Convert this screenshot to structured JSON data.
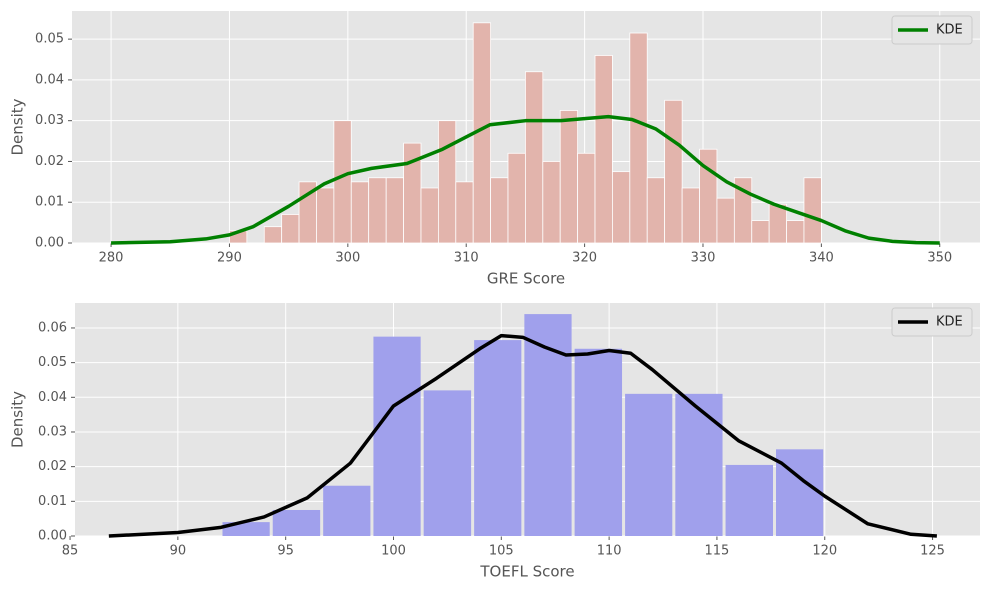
{
  "chart_data": [
    {
      "type": "histogram",
      "xlabel": "GRE Score",
      "ylabel": "Density",
      "color": "#e2b4ac",
      "bins": [
        290,
        291.47,
        292.94,
        294.41,
        295.88,
        297.35,
        298.82,
        300.29,
        301.76,
        303.24,
        304.71,
        306.18,
        307.65,
        309.12,
        310.59,
        312.06,
        313.53,
        315,
        316.47,
        317.94,
        319.41,
        320.88,
        322.35,
        323.82,
        325.29,
        326.76,
        328.24,
        329.71,
        331.18,
        332.65,
        334.12,
        335.59,
        337.06,
        338.53,
        340
      ],
      "counts": [
        0.003,
        0,
        0.004,
        0.007,
        0.015,
        0.0135,
        0.03,
        0.015,
        0.016,
        0.016,
        0.0245,
        0.0135,
        0.03,
        0.015,
        0.054,
        0.016,
        0.022,
        0.042,
        0.02,
        0.0325,
        0.022,
        0.046,
        0.0175,
        0.0515,
        0.016,
        0.035,
        0.0135,
        0.023,
        0.011,
        0.016,
        0.0055,
        0.0095,
        0.0055,
        0.016
      ],
      "kde": {
        "name": "KDE",
        "color": "#008000",
        "x": [
          280,
          285,
          288,
          290,
          292,
          295,
          298,
          300,
          302,
          305,
          308,
          310,
          312,
          315,
          318,
          320,
          322,
          324,
          326,
          328,
          330,
          332,
          334,
          336,
          338,
          340,
          342,
          344,
          346,
          348,
          350
        ],
        "values": [
          0,
          0.0003,
          0.001,
          0.002,
          0.004,
          0.009,
          0.0145,
          0.017,
          0.0183,
          0.0195,
          0.023,
          0.026,
          0.029,
          0.03,
          0.03,
          0.0305,
          0.031,
          0.0303,
          0.028,
          0.024,
          0.019,
          0.015,
          0.012,
          0.0095,
          0.0075,
          0.0055,
          0.003,
          0.0012,
          0.0004,
          0.0001,
          0
        ]
      },
      "xlim": [
        276.7,
        353.4
      ],
      "ylim": [
        0,
        0.0569
      ],
      "xticks": [
        280,
        290,
        300,
        310,
        320,
        330,
        340,
        350
      ],
      "yticks": [
        {
          "value": 0,
          "label": "0.00"
        },
        {
          "value": 0.01,
          "label": "0.01"
        },
        {
          "value": 0.02,
          "label": "0.02"
        },
        {
          "value": 0.03,
          "label": "0.03"
        },
        {
          "value": 0.04,
          "label": "0.04"
        },
        {
          "value": 0.05,
          "label": "0.05"
        }
      ],
      "grid": true,
      "legend": "upper right"
    },
    {
      "type": "histogram",
      "xlabel": "TOEFL Score",
      "ylabel": "Density",
      "color": "#a0a0ec",
      "bins": [
        92,
        94.33,
        96.67,
        99,
        101.33,
        103.67,
        106,
        108.33,
        110.67,
        113,
        115.33,
        117.67,
        120
      ],
      "counts": [
        0.004,
        0.0075,
        0.0145,
        0.0575,
        0.042,
        0.0565,
        0.064,
        0.054,
        0.041,
        0.041,
        0.0205,
        0.025
      ],
      "kde": {
        "name": "KDE",
        "color": "#000000",
        "x": [
          86.8,
          90,
          92,
          94,
          96,
          98,
          100,
          102,
          104,
          105,
          106,
          107,
          108,
          109,
          110,
          111,
          112,
          114,
          116,
          118,
          119,
          120,
          122,
          124,
          125.2
        ],
        "values": [
          0,
          0.001,
          0.0025,
          0.0055,
          0.011,
          0.021,
          0.0375,
          0.0455,
          0.054,
          0.0578,
          0.0573,
          0.0545,
          0.0522,
          0.0525,
          0.0535,
          0.0527,
          0.048,
          0.0375,
          0.0275,
          0.021,
          0.016,
          0.0115,
          0.0035,
          0.0005,
          0
        ]
      },
      "xlim": [
        85.23,
        127.2
      ],
      "ylim": [
        0,
        0.0672
      ],
      "xticks": [
        85,
        90,
        95,
        100,
        105,
        110,
        115,
        120,
        125
      ],
      "yticks": [
        {
          "value": 0,
          "label": "0.00"
        },
        {
          "value": 0.01,
          "label": "0.01"
        },
        {
          "value": 0.02,
          "label": "0.02"
        },
        {
          "value": 0.03,
          "label": "0.03"
        },
        {
          "value": 0.04,
          "label": "0.04"
        },
        {
          "value": 0.05,
          "label": "0.05"
        },
        {
          "value": 0.06,
          "label": "0.06"
        }
      ],
      "grid": true,
      "legend": "upper right"
    }
  ]
}
